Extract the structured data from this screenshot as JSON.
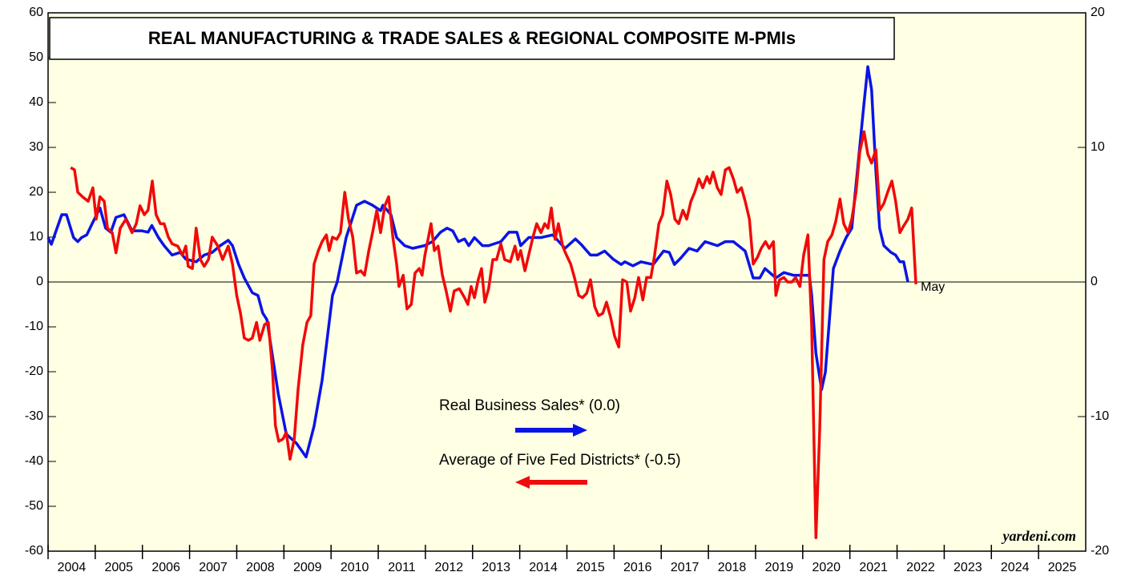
{
  "chart_data": {
    "type": "line",
    "title": "REAL MANUFACTURING & TRADE SALES & REGIONAL COMPOSITE M-PMIs",
    "source": "yardeni.com",
    "annotations": [
      {
        "text": "May",
        "series": 1
      }
    ],
    "xlim": [
      2004,
      2026
    ],
    "xticks": [
      2004,
      2005,
      2006,
      2007,
      2008,
      2009,
      2010,
      2011,
      2012,
      2013,
      2014,
      2015,
      2016,
      2017,
      2018,
      2019,
      2020,
      2021,
      2022,
      2023,
      2024,
      2025
    ],
    "ylim": [
      -60,
      60
    ],
    "yticks": [
      -60,
      -50,
      -40,
      -30,
      -20,
      -10,
      0,
      10,
      20,
      30,
      40,
      50,
      60
    ],
    "y2lim": [
      -20,
      20
    ],
    "y2ticks": [
      -20,
      -10,
      0,
      10,
      20
    ],
    "series": [
      {
        "name": "Real Business Sales* (0.0)",
        "color": "#0a14e6",
        "axis": "y2",
        "legend_arrow": "right",
        "x": [
          2004.0,
          2004.07,
          2004.29,
          2004.39,
          2004.54,
          2004.63,
          2004.71,
          2004.82,
          2004.93,
          2005.1,
          2005.22,
          2005.33,
          2005.44,
          2005.61,
          2005.78,
          2005.99,
          2006.12,
          2006.2,
          2006.34,
          2006.46,
          2006.63,
          2006.8,
          2006.92,
          2007.14,
          2007.31,
          2007.48,
          2007.65,
          2007.82,
          2007.91,
          2008.04,
          2008.16,
          2008.33,
          2008.45,
          2008.55,
          2008.64,
          2008.88,
          2009.05,
          2009.27,
          2009.47,
          2009.64,
          2009.81,
          2010.03,
          2010.13,
          2010.32,
          2010.54,
          2010.71,
          2010.88,
          2011.05,
          2011.1,
          2011.27,
          2011.39,
          2011.56,
          2011.73,
          2011.98,
          2012.15,
          2012.32,
          2012.46,
          2012.58,
          2012.7,
          2012.83,
          2012.92,
          2013.04,
          2013.21,
          2013.34,
          2013.6,
          2013.77,
          2013.94,
          2014.02,
          2014.19,
          2014.45,
          2014.7,
          2014.96,
          2015.18,
          2015.3,
          2015.5,
          2015.64,
          2015.8,
          2015.98,
          2016.15,
          2016.23,
          2016.4,
          2016.57,
          2016.83,
          2017.05,
          2017.17,
          2017.28,
          2017.42,
          2017.59,
          2017.76,
          2017.93,
          2018.19,
          2018.36,
          2018.53,
          2018.78,
          2018.95,
          2019.09,
          2019.2,
          2019.43,
          2019.6,
          2019.8,
          2020.14,
          2020.19,
          2020.28,
          2020.4,
          2020.48,
          2020.65,
          2020.79,
          2020.92,
          2021.04,
          2021.16,
          2021.3,
          2021.38,
          2021.46,
          2021.55,
          2021.63,
          2021.72,
          2021.87,
          2021.97,
          2022.06,
          2022.14,
          2022.23
        ],
        "values": [
          3.3,
          2.8,
          5,
          5,
          3.3,
          3,
          3.3,
          3.5,
          4.3,
          5.5,
          4,
          3.7,
          4.8,
          5,
          3.8,
          3.8,
          3.7,
          4.2,
          3.3,
          2.7,
          2,
          2.2,
          1.7,
          1.5,
          2,
          2.2,
          2.7,
          3.1,
          2.7,
          1.3,
          0.3,
          -0.8,
          -1,
          -2.3,
          -2.8,
          -8.3,
          -11.3,
          -12,
          -13,
          -10.7,
          -7.3,
          -1,
          0,
          3.3,
          5.7,
          6,
          5.7,
          5.3,
          5.7,
          5,
          3.3,
          2.7,
          2.5,
          2.7,
          3,
          3.7,
          4,
          3.8,
          3,
          3.2,
          2.7,
          3.3,
          2.7,
          2.7,
          3,
          3.7,
          3.7,
          2.7,
          3.3,
          3.3,
          3.5,
          2.5,
          3.2,
          2.8,
          2,
          2,
          2.3,
          1.7,
          1.3,
          1.5,
          1.2,
          1.5,
          1.3,
          2.3,
          2.2,
          1.3,
          1.8,
          2.5,
          2.3,
          3,
          2.7,
          3,
          3,
          2.3,
          0.3,
          0.3,
          1,
          0.3,
          0.7,
          0.5,
          0.5,
          -1,
          -5.3,
          -8,
          -6.7,
          1,
          2.3,
          3.3,
          4,
          8.3,
          13.3,
          16,
          14.3,
          8.3,
          4,
          2.7,
          2.2,
          2,
          1.5,
          1.5,
          0
        ]
      },
      {
        "name": "Average of Five Fed Districts* (-0.5)",
        "color": "#f00a0a",
        "axis": "y",
        "legend_arrow": "left",
        "x": [
          2004.48,
          2004.56,
          2004.63,
          2004.73,
          2004.85,
          2004.95,
          2005.02,
          2005.1,
          2005.19,
          2005.26,
          2005.36,
          2005.44,
          2005.53,
          2005.65,
          2005.78,
          2005.87,
          2005.95,
          2006.04,
          2006.12,
          2006.21,
          2006.29,
          2006.38,
          2006.46,
          2006.55,
          2006.63,
          2006.75,
          2006.85,
          2006.92,
          2006.97,
          2007.06,
          2007.14,
          2007.23,
          2007.31,
          2007.4,
          2007.48,
          2007.6,
          2007.7,
          2007.82,
          2007.91,
          2008.0,
          2008.08,
          2008.16,
          2008.25,
          2008.33,
          2008.42,
          2008.49,
          2008.59,
          2008.67,
          2008.76,
          2008.82,
          2008.89,
          2008.98,
          2009.05,
          2009.13,
          2009.22,
          2009.3,
          2009.4,
          2009.49,
          2009.57,
          2009.64,
          2009.73,
          2009.81,
          2009.9,
          2009.96,
          2010.03,
          2010.12,
          2010.2,
          2010.29,
          2010.37,
          2010.46,
          2010.54,
          2010.63,
          2010.71,
          2010.8,
          2010.88,
          2010.97,
          2011.05,
          2011.14,
          2011.22,
          2011.31,
          2011.39,
          2011.44,
          2011.53,
          2011.61,
          2011.7,
          2011.78,
          2011.87,
          2011.93,
          2011.99,
          2012.12,
          2012.19,
          2012.27,
          2012.36,
          2012.44,
          2012.53,
          2012.61,
          2012.72,
          2012.83,
          2012.9,
          2012.97,
          2013.04,
          2013.12,
          2013.19,
          2013.26,
          2013.34,
          2013.43,
          2013.51,
          2013.6,
          2013.68,
          2013.8,
          2013.9,
          2013.96,
          2014.02,
          2014.11,
          2014.19,
          2014.28,
          2014.36,
          2014.45,
          2014.53,
          2014.6,
          2014.67,
          2014.75,
          2014.82,
          2014.91,
          2014.99,
          2015.08,
          2015.16,
          2015.25,
          2015.33,
          2015.42,
          2015.5,
          2015.59,
          2015.67,
          2015.76,
          2015.84,
          2015.93,
          2016.01,
          2016.1,
          2016.18,
          2016.27,
          2016.35,
          2016.44,
          2016.52,
          2016.61,
          2016.69,
          2016.78,
          2016.86,
          2016.95,
          2017.03,
          2017.12,
          2017.2,
          2017.29,
          2017.37,
          2017.46,
          2017.54,
          2017.63,
          2017.71,
          2017.8,
          2017.88,
          2017.97,
          2018.03,
          2018.1,
          2018.19,
          2018.27,
          2018.36,
          2018.44,
          2018.53,
          2018.61,
          2018.7,
          2018.78,
          2018.87,
          2018.95,
          2019.04,
          2019.12,
          2019.21,
          2019.29,
          2019.38,
          2019.43,
          2019.51,
          2019.6,
          2019.68,
          2019.77,
          2019.85,
          2019.94,
          2020.02,
          2020.11,
          2020.19,
          2020.28,
          2020.36,
          2020.45,
          2020.53,
          2020.62,
          2020.7,
          2020.79,
          2020.87,
          2020.96,
          2021.04,
          2021.13,
          2021.21,
          2021.3,
          2021.38,
          2021.46,
          2021.55,
          2021.63,
          2021.72,
          2021.8,
          2021.89,
          2021.97,
          2022.06,
          2022.14,
          2022.23,
          2022.31,
          2022.4
        ],
        "values": [
          25.5,
          25,
          20,
          19,
          18,
          21,
          14,
          19,
          18,
          12,
          11,
          6.5,
          12,
          14,
          11,
          13,
          17,
          15,
          16,
          22.5,
          15,
          13,
          13,
          10,
          8.5,
          8,
          6,
          8,
          3.5,
          3,
          12,
          5,
          3.5,
          5,
          10,
          8,
          5,
          8,
          4,
          -3,
          -7,
          -12.5,
          -13,
          -12.5,
          -9,
          -13,
          -9.5,
          -9,
          -20,
          -32,
          -35.5,
          -35,
          -33.5,
          -39.5,
          -35,
          -24,
          -14,
          -9,
          -7.5,
          4,
          7,
          9,
          10.5,
          7,
          10,
          9.5,
          11,
          20,
          14,
          10,
          2,
          2.5,
          1.5,
          7,
          11,
          16,
          11,
          17,
          19,
          10,
          4,
          -1,
          1.5,
          -6,
          -5,
          2,
          3,
          1.5,
          6,
          13,
          7,
          8,
          1.5,
          -2,
          -6.5,
          -2,
          -1.5,
          -3.5,
          -5,
          -1,
          -3.5,
          0.5,
          3,
          -4.5,
          -1.5,
          5,
          5,
          8.5,
          5,
          4.5,
          8,
          5,
          7,
          2.5,
          6,
          10,
          13,
          11,
          13,
          12,
          16.5,
          9.5,
          13,
          8,
          6,
          4,
          1,
          -3,
          -3.5,
          -2.5,
          0.5,
          -5.5,
          -7.5,
          -7,
          -4.5,
          -8,
          -12,
          -14.5,
          0.5,
          0,
          -6.5,
          -3.5,
          1,
          -4,
          1,
          1,
          6,
          13,
          15,
          22.5,
          19.5,
          14,
          13,
          16,
          14,
          18,
          20,
          23,
          21,
          23.5,
          22,
          24.5,
          21,
          19.5,
          25,
          25.5,
          23,
          20,
          21,
          18,
          14,
          4,
          5.5,
          7.5,
          9,
          7.5,
          9,
          -3,
          0.5,
          1,
          0,
          0,
          1,
          -1,
          6,
          10.5,
          -10,
          -57,
          -33,
          5,
          9,
          10.5,
          13.5,
          18.5,
          13,
          11,
          14,
          20,
          29,
          33.5,
          28.5,
          26.5,
          29.5,
          16,
          17.5,
          20,
          22.5,
          18,
          11,
          12.5,
          14,
          16.5,
          -0.5
        ]
      }
    ]
  }
}
